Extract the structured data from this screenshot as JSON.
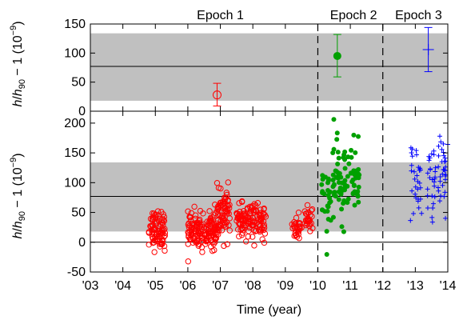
{
  "chart_data": [
    {
      "type": "scatter",
      "panel": "top",
      "ylim": [
        0,
        150
      ],
      "yticks": [
        "0",
        "50",
        "100",
        "150"
      ],
      "xlim": [
        2003,
        2014
      ],
      "grid": false,
      "band": [
        18,
        134
      ],
      "reference_lines": [
        0,
        77
      ],
      "epoch_boundaries": [
        2010,
        2012
      ],
      "epoch_labels": [
        {
          "label": "Epoch 1",
          "x": 2007.0
        },
        {
          "label": "Epoch 2",
          "x": 2011.1
        },
        {
          "label": "Epoch 3",
          "x": 2013.1
        }
      ],
      "series": [
        {
          "marker": "open-circle",
          "color": "#ff0000",
          "x": 2006.9,
          "y": 28,
          "yerr_low": 9,
          "yerr_high": 48
        },
        {
          "marker": "filled-circle",
          "color": "#00a000",
          "x": 2010.6,
          "y": 95,
          "yerr_low": 59,
          "yerr_high": 132
        },
        {
          "marker": "plus",
          "color": "#0000ff",
          "x": 2013.4,
          "y": 106,
          "yerr_low": 68,
          "yerr_high": 144
        }
      ]
    },
    {
      "type": "scatter",
      "panel": "bottom",
      "ylim": [
        -50,
        220
      ],
      "yticks": [
        "-50",
        "0",
        "50",
        "100",
        "150",
        "200"
      ],
      "xlim": [
        2003,
        2014
      ],
      "xticks": [
        "'03",
        "'04",
        "'05",
        "'06",
        "'07",
        "'08",
        "'09",
        "'10",
        "'11",
        "'12",
        "'13",
        "'14"
      ],
      "grid": false,
      "band": [
        18,
        134
      ],
      "reference_lines": [
        0,
        77
      ],
      "epoch_boundaries": [
        2010,
        2012
      ],
      "ylabel_parts": [
        "h",
        "/",
        "h",
        "90",
        " − 1  (10",
        "−9",
        ")"
      ],
      "xlabel": "Time (year)",
      "clusters": [
        {
          "series": "epoch1",
          "marker": "open-circle",
          "color": "#ff0000",
          "x": [
            2004.8,
            2005.3
          ],
          "mean": 22,
          "sd": 16,
          "n": 90
        },
        {
          "series": "epoch1",
          "marker": "open-circle",
          "color": "#ff0000",
          "x": [
            2006.0,
            2006.9
          ],
          "mean": 20,
          "sd": 15,
          "n": 160
        },
        {
          "series": "epoch1",
          "marker": "open-circle",
          "color": "#ff0000",
          "x": [
            2006.9,
            2007.3
          ],
          "mean": 45,
          "sd": 20,
          "n": 75
        },
        {
          "series": "epoch1",
          "marker": "open-circle",
          "color": "#ff0000",
          "x": [
            2007.5,
            2008.4
          ],
          "mean": 35,
          "sd": 14,
          "n": 130
        },
        {
          "series": "epoch1",
          "marker": "open-circle",
          "color": "#ff0000",
          "x": [
            2009.2,
            2009.5
          ],
          "mean": 25,
          "sd": 13,
          "n": 30
        },
        {
          "series": "epoch1",
          "marker": "open-circle",
          "color": "#ff0000",
          "x": [
            2009.6,
            2009.85
          ],
          "mean": 37,
          "sd": 12,
          "n": 28
        },
        {
          "series": "epoch2",
          "marker": "filled-circle",
          "color": "#00a000",
          "x": [
            2010.1,
            2010.4
          ],
          "mean": 65,
          "sd": 30,
          "n": 28
        },
        {
          "series": "epoch2",
          "marker": "filled-circle",
          "color": "#00a000",
          "x": [
            2010.45,
            2010.85
          ],
          "mean": 105,
          "sd": 33,
          "n": 48
        },
        {
          "series": "epoch2",
          "marker": "filled-circle",
          "color": "#00a000",
          "x": [
            2010.9,
            2011.3
          ],
          "mean": 110,
          "sd": 28,
          "n": 38
        },
        {
          "series": "epoch3",
          "marker": "plus",
          "color": "#0000ff",
          "x": [
            2012.85,
            2013.2
          ],
          "mean": 100,
          "sd": 35,
          "n": 30
        },
        {
          "series": "epoch3",
          "marker": "plus",
          "color": "#0000ff",
          "x": [
            2013.35,
            2013.65
          ],
          "mean": 100,
          "sd": 32,
          "n": 26
        },
        {
          "series": "epoch3",
          "marker": "plus",
          "color": "#0000ff",
          "x": [
            2013.7,
            2014.0
          ],
          "mean": 125,
          "sd": 35,
          "n": 32
        }
      ]
    }
  ]
}
